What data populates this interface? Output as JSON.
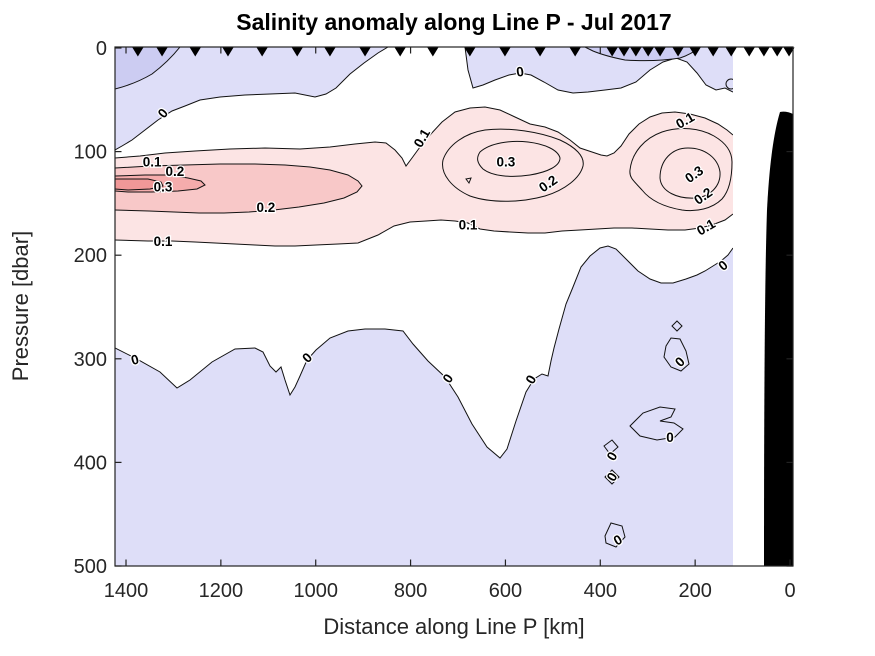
{
  "title": "Salinity anomaly along Line P - Jul 2017",
  "axes": {
    "x": {
      "label": "Distance along Line P [km]",
      "ticks": [
        1400,
        1200,
        1000,
        800,
        600,
        400,
        200,
        0
      ],
      "reversed": true
    },
    "y": {
      "label": "Pressure [dbar]",
      "ticks": [
        0,
        100,
        200,
        300,
        400,
        500
      ],
      "increasing_downward": true
    }
  },
  "chart_data": {
    "type": "heatmap",
    "subtype": "filled-contour-section",
    "variable": "Salinity anomaly",
    "section": "Line P",
    "date": "Jul 2017",
    "title": "Salinity anomaly along Line P - Jul 2017",
    "xlabel": "Distance along Line P [km]",
    "ylabel": "Pressure [dbar]",
    "xlim": [
      1423,
      0
    ],
    "ylim": [
      0,
      500
    ],
    "grid": false,
    "legend": "none",
    "contour_levels": [
      -0.2,
      -0.1,
      0,
      0.1,
      0.2,
      0.3,
      0.4
    ],
    "band_colors": {
      "neg2": "#ccccf2",
      "neg1": "#dedef8",
      "zero_band": "#ffffff",
      "pos1": "#fce4e4",
      "pos2": "#f8c8c8",
      "pos3": "#f5acac",
      "pos4": "#f09898"
    },
    "bathymetry_color": "#000000",
    "station_marker": "filled-down-triangle",
    "station_markers_km": [
      1375,
      1324,
      1254,
      1185,
      1113,
      1039,
      970,
      896,
      822,
      753,
      675,
      601,
      527,
      453,
      375,
      350,
      325,
      299,
      274,
      236,
      200,
      162,
      124,
      86,
      55,
      27,
      2
    ],
    "features": [
      {
        "name": "surface negative anomaly layer",
        "value": "< 0",
        "depth_dbar": "0-60",
        "extent_km": "most of section"
      },
      {
        "name": "subsurface positive anomaly band",
        "value": "0.1 to >0.3",
        "depth_dbar": "70-180",
        "extent_km": "full section, cores near 1350, 600 and 200 km"
      },
      {
        "name": "deep negative anomaly region",
        "value": "< 0",
        "depth_dbar": "below ~250-300",
        "extent_km": "full section"
      }
    ],
    "contour_labels": [
      {
        "v": "0",
        "km": 1322,
        "dbar": 63,
        "rot": -50
      },
      {
        "v": "0.1",
        "km": 1345,
        "dbar": 110,
        "rot": 0
      },
      {
        "v": "0.2",
        "km": 1297,
        "dbar": 119,
        "rot": 0
      },
      {
        "v": "0.3",
        "km": 1322,
        "dbar": 134,
        "rot": 0
      },
      {
        "v": "0.2",
        "km": 1105,
        "dbar": 154,
        "rot": 0
      },
      {
        "v": "0.1",
        "km": 1322,
        "dbar": 187,
        "rot": 0
      },
      {
        "v": "0.1",
        "km": 776,
        "dbar": 87,
        "rot": -60
      },
      {
        "v": "0.3",
        "km": 599,
        "dbar": 110,
        "rot": 0
      },
      {
        "v": "0.2",
        "km": 510,
        "dbar": 131,
        "rot": -35
      },
      {
        "v": "0.1",
        "km": 679,
        "dbar": 171,
        "rot": 0
      },
      {
        "v": "0.1",
        "km": 221,
        "dbar": 70,
        "rot": -30
      },
      {
        "v": "0.3",
        "km": 202,
        "dbar": 122,
        "rot": -35
      },
      {
        "v": "0.2",
        "km": 183,
        "dbar": 143,
        "rot": -35
      },
      {
        "v": "0.1",
        "km": 177,
        "dbar": 173,
        "rot": -30
      },
      {
        "v": "0",
        "km": 569,
        "dbar": 23,
        "rot": -8
      },
      {
        "v": "0",
        "km": 1381,
        "dbar": 301,
        "rot": -15
      },
      {
        "v": "0",
        "km": 1018,
        "dbar": 299,
        "rot": -45
      },
      {
        "v": "0",
        "km": 721,
        "dbar": 319,
        "rot": -55
      },
      {
        "v": "0",
        "km": 546,
        "dbar": 320,
        "rot": -60
      },
      {
        "v": "0",
        "km": 141,
        "dbar": 210,
        "rot": -40
      },
      {
        "v": "0",
        "km": 232,
        "dbar": 303,
        "rot": -45
      },
      {
        "v": "0",
        "km": 253,
        "dbar": 376,
        "rot": 0
      },
      {
        "v": "0",
        "km": 375,
        "dbar": 394,
        "rot": -60
      },
      {
        "v": "0",
        "km": 375,
        "dbar": 414,
        "rot": -60
      },
      {
        "v": "0",
        "km": 363,
        "dbar": 475,
        "rot": -30
      }
    ]
  }
}
